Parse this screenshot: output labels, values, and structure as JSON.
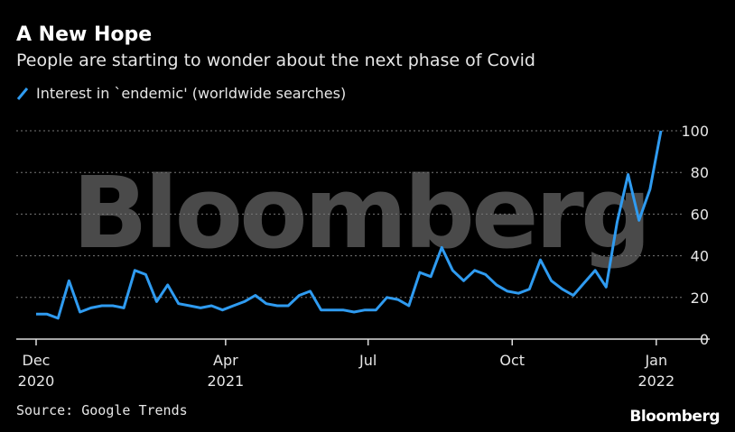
{
  "title": "A New Hope",
  "subtitle": "People are starting to wonder about the next phase of Covid",
  "legend_label": "Interest in `endemic' (worldwide searches)",
  "source": "Source: Google Trends",
  "logo_text": "Bloomberg",
  "watermark_text": "Bloomberg",
  "colors": {
    "line": "#2f9bf0",
    "background": "#000000",
    "grid": "#777777"
  },
  "chart_data": {
    "type": "line",
    "title": "A New Hope",
    "subtitle": "People are starting to wonder about the next phase of Covid",
    "series": [
      {
        "name": "Interest in `endemic' (worldwide searches)",
        "values": [
          12,
          12,
          10,
          28,
          13,
          15,
          16,
          16,
          15,
          33,
          31,
          18,
          26,
          17,
          16,
          15,
          16,
          14,
          16,
          18,
          21,
          17,
          16,
          16,
          21,
          23,
          14,
          14,
          14,
          13,
          14,
          14,
          20,
          19,
          16,
          32,
          30,
          44,
          33,
          28,
          33,
          31,
          26,
          23,
          22,
          24,
          38,
          28,
          24,
          21,
          27,
          33,
          25,
          56,
          79,
          57,
          72,
          100
        ],
        "x": [
          "2020-12-01",
          "2020-12-08",
          "2020-12-15",
          "2020-12-22",
          "2020-12-29",
          "2021-01-05",
          "2021-01-12",
          "2021-01-19",
          "2021-01-26",
          "2021-02-02",
          "2021-02-09",
          "2021-02-16",
          "2021-02-23",
          "2021-03-02",
          "2021-03-09",
          "2021-03-16",
          "2021-03-23",
          "2021-03-30",
          "2021-04-06",
          "2021-04-13",
          "2021-04-20",
          "2021-04-27",
          "2021-05-04",
          "2021-05-11",
          "2021-05-18",
          "2021-05-25",
          "2021-06-01",
          "2021-06-08",
          "2021-06-15",
          "2021-06-22",
          "2021-06-29",
          "2021-07-06",
          "2021-07-13",
          "2021-07-20",
          "2021-07-27",
          "2021-08-03",
          "2021-08-10",
          "2021-08-17",
          "2021-08-24",
          "2021-08-31",
          "2021-09-07",
          "2021-09-14",
          "2021-09-21",
          "2021-09-28",
          "2021-10-05",
          "2021-10-12",
          "2021-10-19",
          "2021-10-26",
          "2021-11-02",
          "2021-11-09",
          "2021-11-16",
          "2021-11-23",
          "2021-11-30",
          "2021-12-07",
          "2021-12-14",
          "2021-12-21",
          "2021-12-28",
          "2022-01-04"
        ]
      }
    ],
    "ylim": [
      0,
      100
    ],
    "yticks": [
      "0",
      "20",
      "40",
      "60",
      "80",
      "100"
    ],
    "xticks": [
      {
        "line1": "Dec",
        "line2": "2020",
        "x": "2020-12-01"
      },
      {
        "line1": "Apr",
        "line2": "2021",
        "x": "2021-04-01"
      },
      {
        "line1": "Jul",
        "line2": "",
        "x": "2021-07-01"
      },
      {
        "line1": "Oct",
        "line2": "",
        "x": "2021-10-01"
      },
      {
        "line1": "Jan",
        "line2": "2022",
        "x": "2022-01-01"
      }
    ],
    "grid": "horizontal dotted",
    "legend_position": "top-left"
  }
}
